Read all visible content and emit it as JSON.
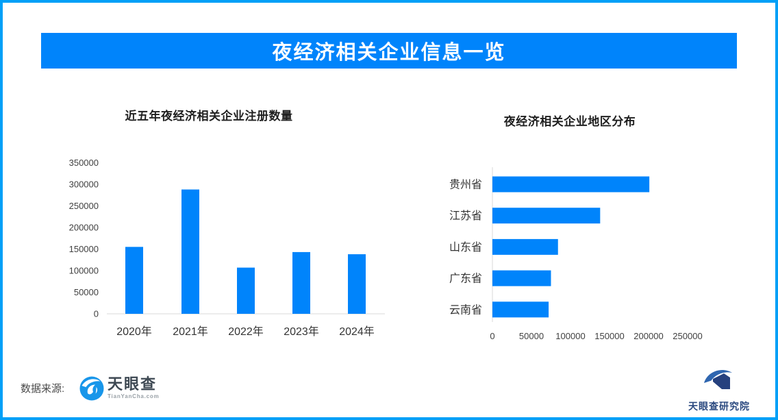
{
  "page": {
    "frame_color": "#02a0f7",
    "accent_blue": "#0084fb",
    "axis_line_color": "#d9d9d9"
  },
  "header": {
    "title": "夜经济相关企业信息一览"
  },
  "footer": {
    "source_label": "数据来源:",
    "tianyancha_name": "天眼查",
    "tianyancha_domain": "TianYanCha.com",
    "research_institute_name": "天眼查研究院"
  },
  "chart_data": [
    {
      "type": "bar",
      "orientation": "vertical",
      "title": "近五年夜经济相关企业注册数量",
      "categories": [
        "2020年",
        "2021年",
        "2022年",
        "2023年",
        "2024年"
      ],
      "values": [
        155000,
        288000,
        107000,
        143000,
        138000
      ],
      "ylabel": "",
      "xlabel": "",
      "ylim": [
        0,
        350000
      ],
      "yticks": [
        0,
        50000,
        100000,
        150000,
        200000,
        250000,
        300000,
        350000
      ],
      "bar_color": "#0084fb",
      "grid": false,
      "legend": false
    },
    {
      "type": "bar",
      "orientation": "horizontal",
      "title": "夜经济相关企业地区分布",
      "categories": [
        "贵州省",
        "江苏省",
        "山东省",
        "广东省",
        "云南省"
      ],
      "values": [
        201000,
        138000,
        84000,
        75000,
        72000
      ],
      "ylabel": "",
      "xlabel": "",
      "xlim": [
        0,
        250000
      ],
      "xticks": [
        0,
        50000,
        100000,
        150000,
        200000,
        250000
      ],
      "bar_color": "#0084fb",
      "grid": false,
      "legend": false
    }
  ]
}
